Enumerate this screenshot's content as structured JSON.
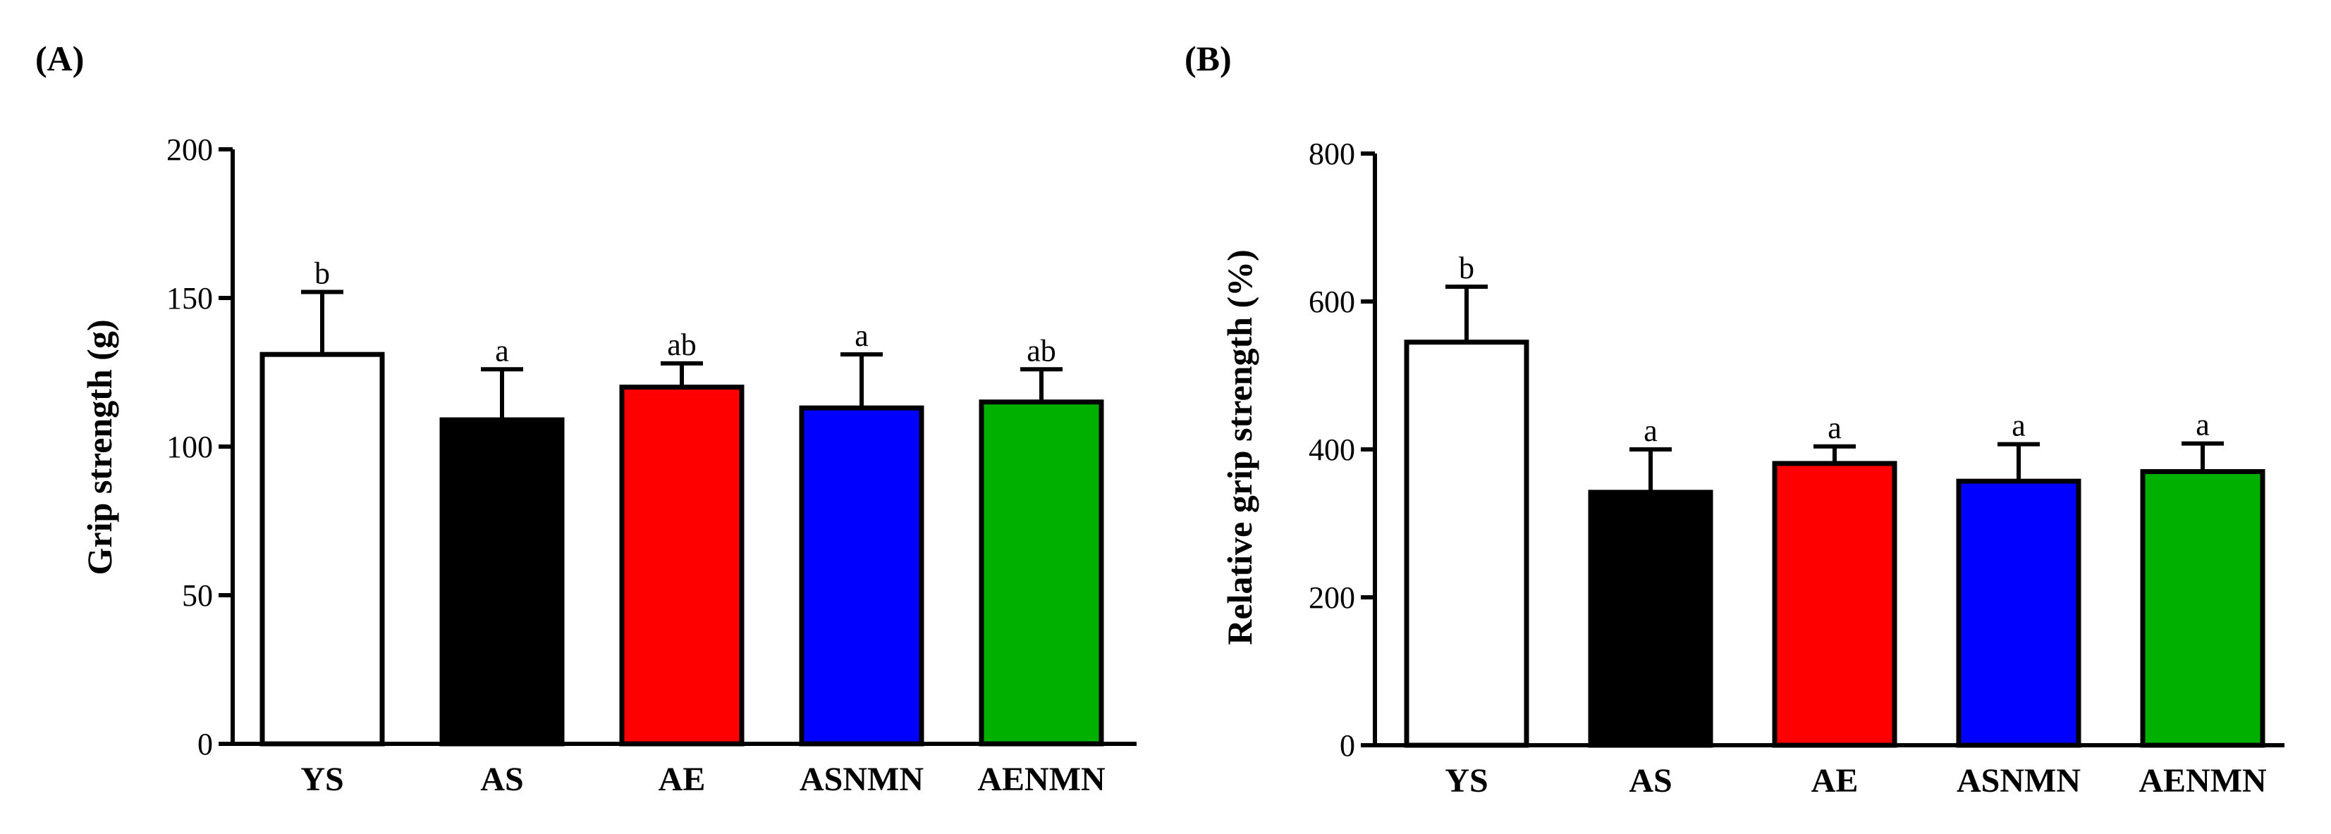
{
  "chart_data": [
    {
      "panel": "(A)",
      "type": "bar",
      "title": "",
      "xlabel": "",
      "ylabel": "Grip strength (g)",
      "ylim": [
        0,
        200
      ],
      "yticks": [
        0,
        50,
        100,
        150,
        200
      ],
      "categories": [
        "YS",
        "AS",
        "AE",
        "ASNMN",
        "AENMN"
      ],
      "values": [
        131,
        109,
        120,
        113,
        115
      ],
      "errors": [
        21,
        17,
        8,
        18,
        11
      ],
      "significance": [
        "b",
        "a",
        "ab",
        "a",
        "ab"
      ],
      "colors": [
        "#ffffff",
        "#000000",
        "#ff0000",
        "#0000ff",
        "#00b000"
      ]
    },
    {
      "panel": "(B)",
      "type": "bar",
      "title": "",
      "xlabel": "",
      "ylabel": "Relative grip strength (%)",
      "ylim": [
        0,
        800
      ],
      "yticks": [
        0,
        200,
        400,
        600,
        800
      ],
      "categories": [
        "YS",
        "AS",
        "AE",
        "ASNMN",
        "AENMN"
      ],
      "values": [
        545,
        342,
        381,
        357,
        370
      ],
      "errors": [
        75,
        58,
        23,
        50,
        38
      ],
      "significance": [
        "b",
        "a",
        "a",
        "a",
        "a"
      ],
      "colors": [
        "#ffffff",
        "#000000",
        "#ff0000",
        "#0000ff",
        "#00b000"
      ]
    }
  ]
}
